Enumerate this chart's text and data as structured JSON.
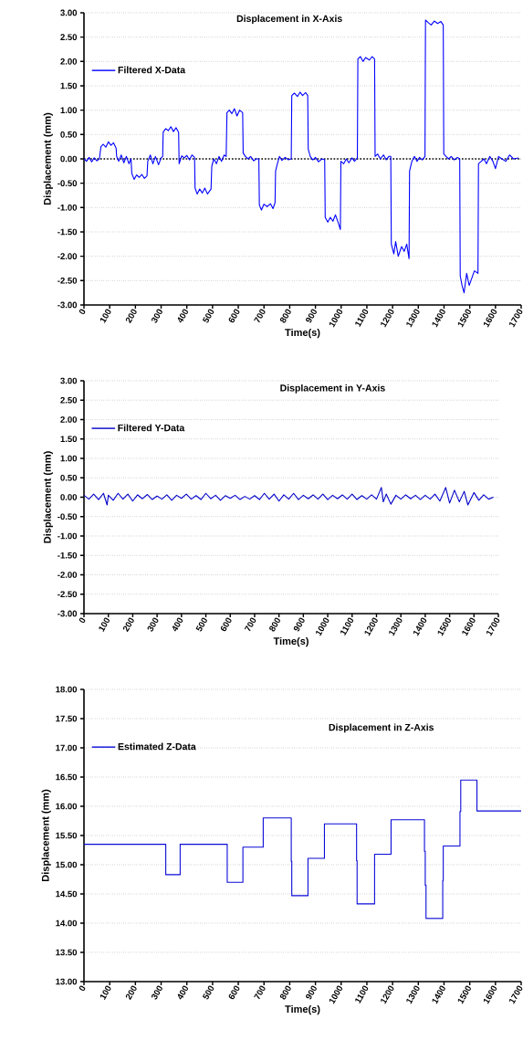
{
  "chart_data": [
    {
      "type": "line",
      "title": "Displacement in X-Axis",
      "xlabel": "Time(s)",
      "ylabel": "Displacement (mm)",
      "xlim": [
        0,
        1700
      ],
      "ylim": [
        -3,
        3
      ],
      "grid": "y",
      "legend": "top left",
      "xticks": [
        0,
        100,
        200,
        300,
        400,
        500,
        600,
        700,
        800,
        900,
        1000,
        1100,
        1200,
        1300,
        1400,
        1500,
        1600,
        1700
      ],
      "yticks": [
        {
          "value": -3,
          "label": "-3.00"
        },
        {
          "value": -2.5,
          "label": "-2.50"
        },
        {
          "value": -2,
          "label": "-2.00"
        },
        {
          "value": -1.5,
          "label": "-1.50"
        },
        {
          "value": -1,
          "label": "-1.00"
        },
        {
          "value": -0.5,
          "label": "-0.50"
        },
        {
          "value": 0,
          "label": "0.00"
        },
        {
          "value": 0.5,
          "label": "0.50"
        },
        {
          "value": 1,
          "label": "1.00"
        },
        {
          "value": 1.5,
          "label": "1.50"
        },
        {
          "value": 2,
          "label": "2.00"
        },
        {
          "value": 2.5,
          "label": "2.50"
        },
        {
          "value": 3,
          "label": "3.00"
        }
      ],
      "ref_lines": [
        {
          "axis": "y",
          "value": 0,
          "color": "#000000",
          "line_style": "dotted"
        }
      ],
      "series": [
        {
          "name": "Filtered X-Data",
          "color": "#0000ff",
          "x": [
            0,
            10,
            20,
            30,
            40,
            50,
            60,
            66,
            75,
            85,
            95,
            105,
            115,
            125,
            127,
            135,
            145,
            155,
            165,
            175,
            183,
            186,
            195,
            205,
            215,
            225,
            235,
            245,
            248,
            258,
            268,
            278,
            290,
            300,
            306,
            308,
            318,
            328,
            338,
            348,
            358,
            368,
            370,
            380,
            390,
            400,
            410,
            420,
            430,
            432,
            440,
            450,
            460,
            470,
            480,
            494,
            497,
            505,
            515,
            525,
            535,
            545,
            553,
            556,
            565,
            575,
            585,
            595,
            605,
            617,
            619,
            628,
            638,
            648,
            660,
            670,
            680,
            682,
            690,
            700,
            712,
            725,
            735,
            743,
            745,
            752,
            760,
            770,
            782,
            795,
            806,
            808,
            818,
            830,
            840,
            850,
            862,
            870,
            872,
            880,
            890,
            900,
            912,
            925,
            936,
            938,
            948,
            958,
            968,
            978,
            988,
            997,
            999,
            1010,
            1020,
            1030,
            1042,
            1052,
            1063,
            1065,
            1075,
            1085,
            1095,
            1110,
            1120,
            1130,
            1132,
            1142,
            1152,
            1165,
            1175,
            1185,
            1193,
            1195,
            1205,
            1212,
            1222,
            1235,
            1245,
            1255,
            1264,
            1266,
            1275,
            1285,
            1295,
            1305,
            1315,
            1326,
            1328,
            1338,
            1350,
            1362,
            1375,
            1388,
            1397,
            1399,
            1408,
            1418,
            1428,
            1440,
            1452,
            1461,
            1463,
            1470,
            1478,
            1488,
            1498,
            1508,
            1518,
            1532,
            1534,
            1545,
            1555,
            1565,
            1578,
            1590,
            1600,
            1612,
            1625,
            1640,
            1655,
            1670,
            1690
          ],
          "values": [
            0.0,
            -0.05,
            0.03,
            -0.06,
            0.02,
            -0.04,
            0.0,
            0.25,
            0.3,
            0.24,
            0.35,
            0.28,
            0.33,
            0.22,
            0.05,
            -0.05,
            0.08,
            -0.08,
            0.05,
            -0.1,
            0.0,
            -0.3,
            -0.42,
            -0.33,
            -0.38,
            -0.32,
            -0.4,
            -0.35,
            -0.05,
            0.08,
            -0.1,
            0.05,
            -0.12,
            0.02,
            0.05,
            0.55,
            0.62,
            0.58,
            0.66,
            0.56,
            0.64,
            0.55,
            -0.1,
            0.06,
            0.02,
            0.07,
            -0.02,
            0.08,
            0.03,
            -0.6,
            -0.72,
            -0.62,
            -0.7,
            -0.6,
            -0.72,
            -0.62,
            -0.15,
            0.0,
            -0.1,
            0.05,
            -0.05,
            0.08,
            0.05,
            0.95,
            1.0,
            0.93,
            1.03,
            0.88,
            1.0,
            0.95,
            0.12,
            0.05,
            0.0,
            0.05,
            -0.04,
            0.0,
            0.0,
            -0.95,
            -1.05,
            -0.93,
            -0.98,
            -0.92,
            -1.02,
            -0.9,
            -0.25,
            -0.1,
            0.05,
            -0.03,
            0.03,
            -0.02,
            0.0,
            1.3,
            1.35,
            1.28,
            1.37,
            1.3,
            1.36,
            1.3,
            0.2,
            0.05,
            -0.02,
            0.03,
            -0.06,
            0.0,
            -0.02,
            -1.2,
            -1.3,
            -1.2,
            -1.28,
            -1.15,
            -1.3,
            -1.45,
            -0.05,
            -0.1,
            0.0,
            -0.08,
            0.02,
            -0.05,
            0.02,
            2.05,
            2.1,
            2.0,
            2.08,
            2.03,
            2.1,
            2.05,
            0.05,
            0.1,
            0.0,
            0.08,
            -0.02,
            0.05,
            0.05,
            -1.75,
            -1.95,
            -1.7,
            -2.0,
            -1.8,
            -1.9,
            -1.75,
            -2.05,
            -0.25,
            -0.05,
            0.05,
            -0.05,
            0.03,
            -0.02,
            0.05,
            2.85,
            2.8,
            2.75,
            2.83,
            2.78,
            2.82,
            2.75,
            0.1,
            0.05,
            0.0,
            0.05,
            -0.02,
            0.03,
            0.0,
            -2.4,
            -2.6,
            -2.75,
            -2.35,
            -2.6,
            -2.45,
            -2.3,
            -2.35,
            -0.1,
            -0.05,
            0.0,
            -0.1,
            0.05,
            -0.05,
            -0.2,
            0.05,
            0.0,
            -0.05,
            0.08,
            0.0,
            0.02
          ]
        }
      ]
    },
    {
      "type": "line",
      "title": "Displacement in Y-Axis",
      "xlabel": "Time(s)",
      "ylabel": "Displacement (mm)",
      "xlim": [
        0,
        1700
      ],
      "ylim": [
        -3,
        3
      ],
      "grid": "y",
      "legend": "top left",
      "xticks": [
        0,
        100,
        200,
        300,
        400,
        500,
        600,
        700,
        800,
        900,
        1000,
        1100,
        1200,
        1300,
        1400,
        1500,
        1600,
        1700
      ],
      "yticks": [
        {
          "value": -3,
          "label": "-3.00"
        },
        {
          "value": -2.5,
          "label": "-2.50"
        },
        {
          "value": -2,
          "label": "-2.00"
        },
        {
          "value": -1.5,
          "label": "-1.50"
        },
        {
          "value": -1,
          "label": "-1.00"
        },
        {
          "value": -0.5,
          "label": "-0.50"
        },
        {
          "value": 0,
          "label": "0.00"
        },
        {
          "value": 0.5,
          "label": "0.50"
        },
        {
          "value": 1,
          "label": "1.00"
        },
        {
          "value": 1.5,
          "label": "1.50"
        },
        {
          "value": 2,
          "label": "2.00"
        },
        {
          "value": 2.5,
          "label": "2.50"
        },
        {
          "value": 3,
          "label": "3.00"
        }
      ],
      "series": [
        {
          "name": "Filtered Y-Data",
          "color": "#0000c8",
          "x": [
            0,
            20,
            40,
            60,
            80,
            95,
            100,
            120,
            140,
            160,
            180,
            200,
            220,
            240,
            260,
            280,
            300,
            320,
            340,
            360,
            380,
            400,
            420,
            440,
            460,
            480,
            500,
            520,
            540,
            560,
            580,
            600,
            620,
            640,
            660,
            680,
            700,
            720,
            740,
            760,
            780,
            800,
            820,
            840,
            860,
            880,
            900,
            920,
            940,
            960,
            980,
            1000,
            1020,
            1040,
            1060,
            1080,
            1100,
            1120,
            1140,
            1160,
            1180,
            1200,
            1220,
            1228,
            1240,
            1259,
            1280,
            1300,
            1320,
            1340,
            1360,
            1380,
            1400,
            1420,
            1440,
            1460,
            1484,
            1500,
            1520,
            1540,
            1560,
            1575,
            1600,
            1620,
            1640,
            1660,
            1680
          ],
          "values": [
            0.05,
            -0.05,
            0.08,
            -0.06,
            0.1,
            -0.2,
            0.05,
            -0.08,
            0.1,
            -0.05,
            0.08,
            -0.1,
            0.06,
            -0.04,
            0.07,
            -0.06,
            0.03,
            -0.05,
            0.06,
            -0.08,
            0.05,
            -0.03,
            0.08,
            -0.05,
            0.04,
            -0.06,
            0.1,
            -0.04,
            0.05,
            -0.08,
            0.04,
            -0.03,
            0.05,
            -0.06,
            0.02,
            -0.05,
            0.04,
            -0.06,
            0.1,
            -0.05,
            0.08,
            -0.1,
            0.06,
            -0.05,
            0.1,
            -0.06,
            0.05,
            -0.04,
            0.06,
            -0.05,
            0.08,
            -0.06,
            0.05,
            -0.04,
            0.06,
            -0.05,
            0.08,
            -0.06,
            0.04,
            -0.05,
            0.06,
            -0.05,
            0.25,
            -0.12,
            0.08,
            -0.18,
            0.05,
            -0.05,
            0.06,
            -0.04,
            0.05,
            -0.06,
            0.05,
            -0.05,
            0.08,
            -0.1,
            0.25,
            -0.15,
            0.18,
            -0.12,
            0.15,
            -0.2,
            0.12,
            -0.08,
            0.06,
            -0.05,
            0.0
          ]
        }
      ]
    },
    {
      "type": "step",
      "title": "Displacement in Z-Axis",
      "xlabel": "Time(s)",
      "ylabel": "Displacement (mm)",
      "xlim": [
        0,
        1700
      ],
      "ylim": [
        13,
        18
      ],
      "grid": "y",
      "legend": "top left",
      "xticks": [
        0,
        100,
        200,
        300,
        400,
        500,
        600,
        700,
        800,
        900,
        1000,
        1100,
        1200,
        1300,
        1400,
        1500,
        1600,
        1700
      ],
      "yticks": [
        {
          "value": 13,
          "label": "13.00"
        },
        {
          "value": 13.5,
          "label": "13.50"
        },
        {
          "value": 14,
          "label": "14.00"
        },
        {
          "value": 14.5,
          "label": "14.50"
        },
        {
          "value": 15,
          "label": "15.00"
        },
        {
          "value": 15.5,
          "label": "15.50"
        },
        {
          "value": 16,
          "label": "16.00"
        },
        {
          "value": 16.5,
          "label": "16.50"
        },
        {
          "value": 17,
          "label": "17.00"
        },
        {
          "value": 17.5,
          "label": "17.50"
        },
        {
          "value": 18,
          "label": "18.00"
        }
      ],
      "series": [
        {
          "name": "Estimated Z-Data",
          "color": "#0a0ad8",
          "x": [
            0,
            318,
            374,
            557,
            618,
            697,
            806,
            808,
            871,
            935,
            1060,
            1062,
            1130,
            1194,
            1324,
            1327,
            1330,
            1395,
            1397,
            1462,
            1465,
            1528,
            1700
          ],
          "values": [
            15.35,
            14.83,
            15.35,
            14.7,
            15.3,
            15.8,
            15.06,
            14.47,
            15.11,
            15.7,
            15.07,
            14.33,
            15.18,
            15.77,
            15.23,
            14.65,
            14.08,
            14.73,
            15.32,
            15.91,
            16.45,
            15.92,
            15.92
          ]
        }
      ]
    }
  ]
}
